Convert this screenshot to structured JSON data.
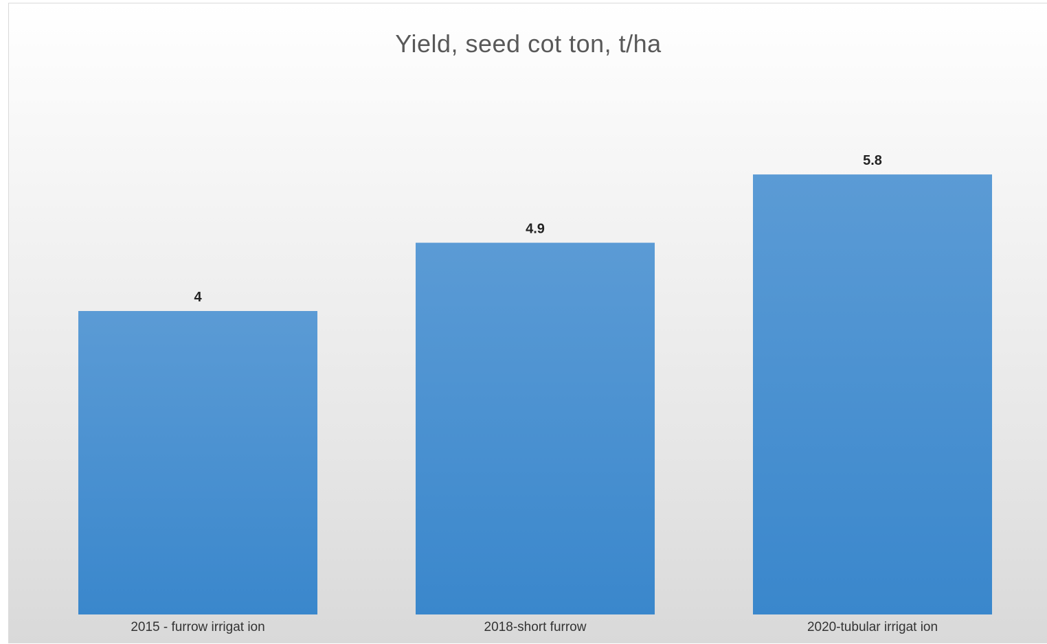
{
  "chart_data": {
    "type": "bar",
    "title": "Yield, seed cot ton, t/ha",
    "categories": [
      "2015 - furrow irrigat ion",
      "2018-short furrow",
      "2020-tubular irrigat ion"
    ],
    "values": [
      4,
      4.9,
      5.8
    ],
    "data_labels": [
      "4",
      "4.9",
      "5.8"
    ],
    "bar_color_top": "#5b9bd5",
    "bar_color_bottom": "#3a87cc",
    "grid": false,
    "legend": "none",
    "ylim": [
      0,
      7
    ]
  }
}
